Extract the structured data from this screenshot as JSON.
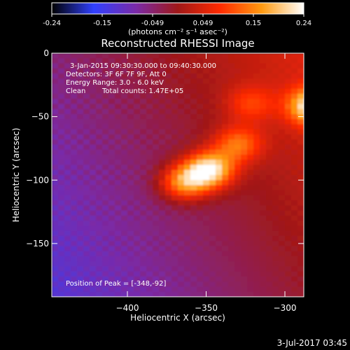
{
  "chart_data": {
    "type": "heatmap",
    "title": "Reconstructed RHESSI Image",
    "xlabel": "Heliocentric X (arcsec)",
    "ylabel": "Heliocentric Y (arcsec)",
    "xlim": [
      -448,
      -288
    ],
    "ylim": [
      -192,
      0
    ],
    "x_ticks": [
      -400,
      -350,
      -300
    ],
    "y_ticks": [
      0,
      -50,
      -100,
      -150
    ],
    "colorbar": {
      "range": [
        -0.24,
        0.24
      ],
      "ticks": [
        "-0.24",
        "-0.15",
        "-0.049",
        "0.049",
        "0.15",
        "0.24"
      ],
      "unit_label": "(photons cm⁻² s⁻¹ asec⁻²)",
      "colormap": [
        "#000000",
        "#3040ff",
        "#7a2aa8",
        "#a01818",
        "#ff2a00",
        "#ff9a10",
        "#ffffff"
      ]
    },
    "annotations": {
      "time_range": "3-Jan-2015 09:30:30.000 to 09:40:30.000",
      "detectors": "Detectors: 3F 6F 7F 9F, Att 0",
      "energy": "Energy Range: 3.0 - 6.0 keV",
      "clean": "Clean",
      "total_counts": "Total counts: 1.47E+05",
      "peak": "Position of Peak = [-348,-92]"
    },
    "sources": [
      {
        "x": -348,
        "y": -92,
        "intensity": 0.24
      },
      {
        "x": -364,
        "y": -102,
        "intensity": 0.18
      },
      {
        "x": -282,
        "y": -42,
        "intensity": 0.22
      },
      {
        "x": -330,
        "y": -72,
        "intensity": 0.13
      },
      {
        "x": -322,
        "y": -40,
        "intensity": 0.08
      }
    ],
    "footer_date": "3-Jul-2017 03:45"
  }
}
